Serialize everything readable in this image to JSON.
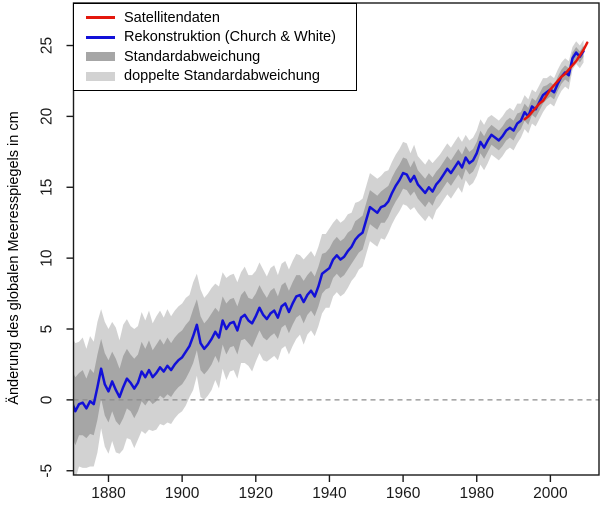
{
  "chart_data": {
    "type": "line",
    "title": "",
    "xlabel": "",
    "ylabel": "Änderung des globalen Meeresspiegels in cm",
    "xlim": [
      1870.5,
      2013.2
    ],
    "ylim": [
      -5.3,
      28.0
    ],
    "x_ticks": [
      1880,
      1900,
      1920,
      1940,
      1960,
      1980,
      2000
    ],
    "y_ticks": [
      -5,
      0,
      5,
      10,
      15,
      20,
      25
    ],
    "grid": false,
    "zero_line": {
      "y": 0,
      "style": "dashed",
      "color": "#8c8c8c"
    },
    "legend": {
      "position": "top-left",
      "entries": [
        {
          "label": "Satellitendaten",
          "color": "#e3170d",
          "swatch": "line"
        },
        {
          "label": "Rekonstruktion (Church & White)",
          "color": "#1210d8",
          "swatch": "line"
        },
        {
          "label": "Standardabweichung",
          "color": "#a6a6a6",
          "swatch": "band"
        },
        {
          "label": "doppelte Standardabweichung",
          "color": "#d2d2d2",
          "swatch": "band"
        }
      ]
    },
    "series": [
      {
        "name": "Rekonstruktion (Church & White)",
        "color": "#1210d8",
        "x_start": 1870,
        "x_step": 1,
        "values": [
          -0.1,
          -0.8,
          -0.3,
          -0.2,
          -0.6,
          -0.1,
          -0.3,
          0.9,
          2.2,
          1.1,
          0.6,
          1.3,
          0.7,
          0.2,
          0.9,
          1.5,
          1.2,
          0.8,
          1.2,
          2.0,
          1.6,
          2.1,
          1.6,
          1.9,
          2.3,
          2.0,
          2.4,
          2.1,
          2.5,
          2.8,
          3.0,
          3.4,
          3.8,
          4.5,
          5.3,
          4.0,
          3.6,
          3.9,
          4.3,
          4.8,
          4.4,
          5.6,
          5.0,
          5.4,
          5.5,
          4.9,
          5.8,
          6.0,
          5.6,
          5.4,
          5.9,
          6.5,
          6.0,
          5.7,
          6.1,
          6.3,
          5.8,
          6.6,
          6.8,
          6.2,
          6.8,
          7.3,
          7.4,
          6.9,
          7.4,
          7.7,
          7.3,
          8.0,
          8.9,
          9.1,
          9.3,
          9.9,
          10.2,
          9.9,
          10.1,
          10.5,
          10.8,
          11.3,
          11.6,
          11.8,
          12.7,
          13.6,
          13.4,
          13.2,
          13.6,
          13.7,
          14.0,
          14.6,
          15.1,
          15.5,
          16.0,
          15.9,
          15.4,
          15.8,
          15.2,
          14.9,
          14.6,
          15.0,
          14.7,
          15.2,
          15.5,
          15.9,
          16.3,
          16.0,
          16.4,
          16.8,
          16.4,
          17.1,
          16.7,
          16.9,
          17.4,
          18.2,
          17.8,
          18.3,
          18.7,
          18.5,
          18.3,
          18.6,
          19.0,
          19.2,
          19.0,
          19.5,
          19.7,
          20.3,
          20.0,
          20.7,
          20.5,
          21.0,
          21.5,
          21.7,
          21.9,
          21.7,
          22.3,
          22.8,
          23.1,
          22.9,
          24.1,
          24.5,
          24.2,
          24.6
        ]
      },
      {
        "name": "Satellitendaten",
        "color": "#e3170d",
        "x_start": 1993,
        "x_step": 1,
        "values": [
          19.8,
          20.0,
          20.3,
          20.6,
          20.9,
          21.1,
          21.5,
          21.9,
          22.2,
          22.5,
          22.8,
          23.0,
          23.3,
          23.6,
          23.9,
          24.3,
          24.7,
          25.2
        ]
      }
    ],
    "bands": {
      "about_series": "Rekonstruktion (Church & White)",
      "x_start": 1870,
      "x_step": 1,
      "inner_label": "Standardabweichung",
      "inner_multiplier": 1,
      "inner_color": "#a6a6a6",
      "outer_label": "doppelte Standardabweichung",
      "outer_multiplier": 2,
      "outer_color": "#d2d2d2",
      "sigma": [
        2.3,
        2.4,
        2.2,
        2.3,
        2.1,
        2.3,
        2.2,
        2.3,
        2.1,
        2.2,
        2.2,
        2.1,
        2.2,
        2.0,
        2.2,
        2.1,
        2.0,
        2.1,
        2.0,
        2.1,
        2.0,
        2.1,
        1.9,
        2.0,
        2.0,
        1.9,
        2.0,
        1.9,
        1.9,
        1.9,
        1.9,
        1.9,
        1.8,
        1.9,
        1.8,
        1.9,
        1.8,
        1.8,
        1.8,
        1.7,
        1.8,
        1.7,
        1.8,
        1.7,
        1.7,
        1.7,
        1.6,
        1.7,
        1.6,
        1.7,
        1.6,
        1.6,
        1.6,
        1.5,
        1.6,
        1.6,
        1.5,
        1.5,
        1.5,
        1.5,
        1.5,
        1.5,
        1.4,
        1.5,
        1.4,
        1.4,
        1.4,
        1.4,
        1.4,
        1.3,
        1.4,
        1.3,
        1.3,
        1.3,
        1.3,
        1.3,
        1.2,
        1.3,
        1.2,
        1.2,
        1.2,
        1.2,
        1.2,
        1.2,
        1.1,
        1.2,
        1.1,
        1.1,
        1.1,
        1.1,
        1.1,
        1.1,
        1.0,
        1.1,
        1.0,
        1.0,
        1.0,
        1.0,
        1.0,
        0.9,
        0.9,
        0.9,
        0.9,
        0.9,
        0.9,
        0.9,
        0.9,
        0.8,
        0.8,
        0.8,
        0.8,
        0.8,
        0.8,
        0.8,
        0.7,
        0.7,
        0.7,
        0.7,
        0.7,
        0.7,
        0.7,
        0.7,
        0.6,
        0.6,
        0.6,
        0.6,
        0.6,
        0.6,
        0.6,
        0.5,
        0.5,
        0.5,
        0.5,
        0.5,
        0.5,
        0.5,
        0.4,
        0.4,
        0.4,
        0.4
      ]
    },
    "frame_color": "#1a1a1a",
    "tick_label_color": "#1a1a1a"
  }
}
